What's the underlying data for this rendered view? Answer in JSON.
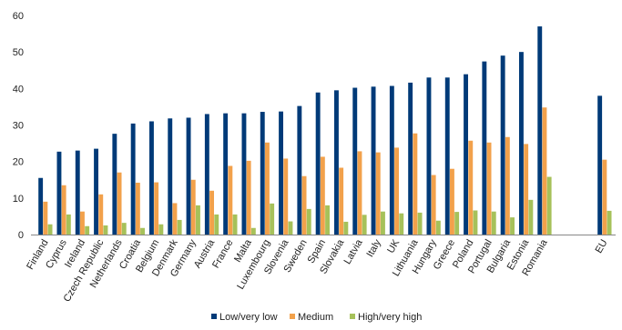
{
  "chart_data": {
    "type": "bar",
    "title": "",
    "xlabel": "",
    "ylabel": "",
    "ylim": [
      0,
      60
    ],
    "yticks": [
      0,
      10,
      20,
      30,
      40,
      50,
      60
    ],
    "grid": false,
    "legend_position": "bottom",
    "categories": [
      "Finland",
      "Cyprus",
      "Ireland",
      "Czech Republic",
      "Netherlands",
      "Croatia",
      "Belgium",
      "Denmark",
      "Germany",
      "Austria",
      "France",
      "Malta",
      "Luxembourg",
      "Slovenia",
      "Sweden",
      "Spain",
      "Slovakia",
      "Latvia",
      "Italy",
      "UK",
      "Lithuania",
      "Hungary",
      "Greece",
      "Poland",
      "Portugal",
      "Bulgaria",
      "Estonia",
      "Romania",
      "EU"
    ],
    "series": [
      {
        "name": "Low/very low",
        "color": "#003a78",
        "values": [
          15.5,
          22.7,
          23.0,
          23.5,
          27.6,
          30.4,
          31.0,
          31.8,
          32.0,
          33.0,
          33.2,
          33.2,
          33.6,
          33.7,
          35.2,
          38.9,
          39.5,
          40.2,
          40.5,
          40.7,
          41.6,
          43.0,
          43.0,
          43.9,
          47.4,
          49.0,
          50.0,
          57.0,
          38.0
        ]
      },
      {
        "name": "Medium",
        "color": "#f2a14b",
        "values": [
          9.0,
          13.5,
          6.3,
          11.0,
          17.0,
          14.2,
          14.3,
          8.6,
          15.0,
          12.0,
          18.8,
          20.2,
          25.2,
          20.8,
          16.0,
          21.3,
          18.3,
          22.8,
          22.5,
          23.8,
          27.7,
          16.3,
          18.0,
          25.7,
          25.2,
          26.7,
          24.8,
          34.8,
          20.5
        ]
      },
      {
        "name": "High/very high",
        "color": "#a6c15a",
        "values": [
          2.8,
          5.5,
          2.3,
          2.5,
          3.2,
          1.8,
          2.8,
          4.0,
          8.0,
          5.5,
          5.5,
          1.8,
          8.5,
          3.6,
          7.0,
          8.0,
          3.5,
          5.4,
          6.3,
          5.8,
          6.0,
          3.8,
          6.2,
          6.6,
          6.3,
          4.7,
          9.5,
          15.8,
          6.5
        ]
      }
    ]
  }
}
